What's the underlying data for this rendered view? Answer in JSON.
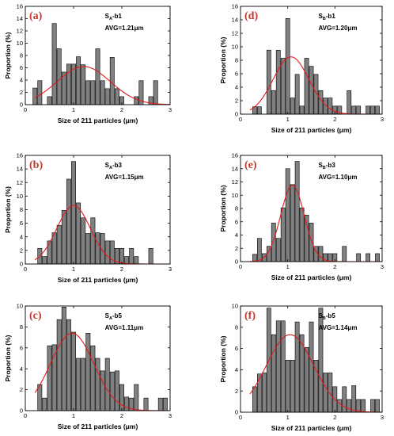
{
  "chart_data": [
    {
      "type": "bar",
      "panel_label": "(a)",
      "sample": {
        "base": "S",
        "sub": "A",
        "suffix": "-b1"
      },
      "avg_label": "AVG=1.21μm",
      "xlabel": "Size of 211 particles (μm)",
      "ylabel": "Proportion (%)",
      "xlim": [
        0,
        3
      ],
      "ylim": [
        0,
        16
      ],
      "xticks": [
        0,
        1,
        2,
        3
      ],
      "yticks": [
        0,
        2,
        4,
        6,
        8,
        10,
        12,
        14,
        16
      ],
      "bin_width": 0.1,
      "bar_color": "#808080",
      "fit_color": "#e31a1c",
      "x": [
        0.2,
        0.3,
        0.4,
        0.5,
        0.6,
        0.7,
        0.8,
        0.9,
        1.0,
        1.1,
        1.2,
        1.3,
        1.4,
        1.5,
        1.6,
        1.7,
        1.8,
        1.9,
        2.0,
        2.1,
        2.2,
        2.3,
        2.4,
        2.5,
        2.6,
        2.7
      ],
      "values": [
        2.7,
        3.9,
        0,
        1.3,
        13.2,
        9.1,
        5.3,
        6.6,
        6.6,
        7.8,
        6.5,
        3.9,
        3.9,
        9.1,
        3.9,
        2.6,
        7.7,
        2.6,
        1.3,
        0,
        0,
        1.3,
        3.9,
        0,
        1.3,
        3.9
      ],
      "fit": {
        "mean": 1.21,
        "sigma": 0.55,
        "peak": 6.2
      }
    },
    {
      "type": "bar",
      "panel_label": "(b)",
      "sample": {
        "base": "S",
        "sub": "A",
        "suffix": "-b3"
      },
      "avg_label": "AVG=1.15μm",
      "xlabel": "Size of 211 particles (μm)",
      "ylabel": "Proportion (%)",
      "xlim": [
        0,
        3
      ],
      "ylim": [
        0,
        16
      ],
      "xticks": [
        0,
        1,
        2,
        3
      ],
      "yticks": [
        0,
        2,
        4,
        6,
        8,
        10,
        12,
        14,
        16
      ],
      "bin_width": 0.1,
      "bar_color": "#808080",
      "fit_color": "#e31a1c",
      "x": [
        0.3,
        0.4,
        0.5,
        0.6,
        0.7,
        0.8,
        0.9,
        1.0,
        1.1,
        1.2,
        1.3,
        1.4,
        1.5,
        1.6,
        1.7,
        1.8,
        1.9,
        2.0,
        2.1,
        2.2,
        2.3,
        2.5,
        2.6
      ],
      "values": [
        2.3,
        1.1,
        3.4,
        4.6,
        5.7,
        7.9,
        12.5,
        15.1,
        9.0,
        6.8,
        4.5,
        6.8,
        4.6,
        4.5,
        3.4,
        3.4,
        2.3,
        2.3,
        1.1,
        2.3,
        1.1,
        0,
        2.3
      ],
      "fit": {
        "mean": 1.0,
        "sigma": 0.35,
        "peak": 8.6
      }
    },
    {
      "type": "bar",
      "panel_label": "(c)",
      "sample": {
        "base": "S",
        "sub": "A",
        "suffix": "-b5"
      },
      "avg_label": "AVG=1.11μm",
      "xlabel": "Size of 211 particles (μm)",
      "ylabel": "Proportion (%)",
      "xlim": [
        0,
        3
      ],
      "ylim": [
        0,
        10
      ],
      "xticks": [
        0,
        1,
        2,
        3
      ],
      "yticks": [
        0,
        2,
        4,
        6,
        8,
        10
      ],
      "bin_width": 0.1,
      "bar_color": "#808080",
      "fit_color": "#e31a1c",
      "x": [
        0.3,
        0.4,
        0.5,
        0.6,
        0.7,
        0.8,
        0.9,
        1.0,
        1.1,
        1.2,
        1.3,
        1.4,
        1.5,
        1.6,
        1.7,
        1.8,
        1.9,
        2.0,
        2.1,
        2.2,
        2.3,
        2.4,
        2.5,
        2.6,
        2.7,
        2.8,
        2.9
      ],
      "values": [
        2.5,
        1.2,
        6.2,
        6.3,
        8.7,
        9.9,
        8.7,
        7.5,
        5.0,
        5.0,
        7.4,
        6.2,
        5.0,
        3.8,
        5.0,
        3.7,
        3.8,
        2.5,
        1.3,
        1.2,
        2.5,
        0,
        1.2,
        0,
        0,
        1.2,
        1.2
      ],
      "fit": {
        "mean": 0.97,
        "sigma": 0.45,
        "peak": 7.4
      }
    },
    {
      "type": "bar",
      "panel_label": "(d)",
      "sample": {
        "base": "S",
        "sub": "B",
        "suffix": "-b1"
      },
      "avg_label": "AVG=1.20μm",
      "xlabel": "Size of 211 particles (μm)",
      "ylabel": "Proportion (%)",
      "xlim": [
        0,
        3
      ],
      "ylim": [
        0,
        16
      ],
      "xticks": [
        0,
        1,
        2,
        3
      ],
      "yticks": [
        0,
        2,
        4,
        6,
        8,
        10,
        12,
        14,
        16
      ],
      "bin_width": 0.1,
      "bar_color": "#808080",
      "fit_color": "#e31a1c",
      "x": [
        0.3,
        0.4,
        0.5,
        0.6,
        0.7,
        0.8,
        0.9,
        1.0,
        1.1,
        1.2,
        1.3,
        1.4,
        1.5,
        1.6,
        1.7,
        1.8,
        1.9,
        2.0,
        2.1,
        2.2,
        2.3,
        2.4,
        2.5,
        2.6,
        2.7,
        2.8,
        2.9
      ],
      "values": [
        1.1,
        1.1,
        0,
        9.5,
        3.5,
        9.5,
        8.3,
        14.2,
        2.4,
        5.9,
        1.2,
        8.3,
        7.1,
        5.9,
        3.5,
        2.4,
        2.4,
        1.2,
        1.2,
        0,
        3.5,
        1.2,
        1.2,
        0,
        1.2,
        1.2,
        1.2
      ],
      "fit": {
        "mean": 1.07,
        "sigma": 0.38,
        "peak": 8.5
      }
    },
    {
      "type": "bar",
      "panel_label": "(e)",
      "sample": {
        "base": "S",
        "sub": "B",
        "suffix": "-b3"
      },
      "avg_label": "AVG=1.10μm",
      "xlabel": "Size of 211 particles (μm)",
      "ylabel": "Proportion (%)",
      "xlim": [
        0,
        3
      ],
      "ylim": [
        0,
        16
      ],
      "xticks": [
        0,
        1,
        2,
        3
      ],
      "yticks": [
        0,
        2,
        4,
        6,
        8,
        10,
        12,
        14,
        16
      ],
      "bin_width": 0.1,
      "bar_color": "#808080",
      "fit_color": "#e31a1c",
      "x": [
        0.3,
        0.4,
        0.5,
        0.6,
        0.7,
        0.8,
        0.9,
        1.0,
        1.1,
        1.2,
        1.3,
        1.4,
        1.5,
        1.6,
        1.7,
        1.8,
        1.9,
        2.0,
        2.1,
        2.2,
        2.5,
        2.7,
        2.9
      ],
      "values": [
        1.1,
        3.5,
        1.2,
        2.3,
        5.8,
        3.5,
        8.1,
        14.0,
        11.6,
        15.1,
        8.1,
        7.0,
        5.8,
        2.3,
        2.3,
        1.2,
        1.2,
        1.2,
        0,
        2.3,
        1.2,
        1.2,
        1.2
      ],
      "fit": {
        "mean": 1.1,
        "sigma": 0.25,
        "peak": 11.5
      }
    },
    {
      "type": "bar",
      "panel_label": "(f)",
      "sample": {
        "base": "S",
        "sub": "B",
        "suffix": "-b5"
      },
      "avg_label": "AVG=1.14μm",
      "xlabel": "Size of 211 particles (μm)",
      "ylabel": "Proportion (%)",
      "xlim": [
        0,
        3
      ],
      "ylim": [
        0,
        10
      ],
      "xticks": [
        0,
        1,
        2,
        3
      ],
      "yticks": [
        0,
        2,
        4,
        6,
        8,
        10
      ],
      "bin_width": 0.1,
      "bar_color": "#808080",
      "fit_color": "#e31a1c",
      "x": [
        0.3,
        0.4,
        0.5,
        0.6,
        0.7,
        0.8,
        0.9,
        1.0,
        1.1,
        1.2,
        1.3,
        1.4,
        1.5,
        1.6,
        1.7,
        1.8,
        1.9,
        2.0,
        2.1,
        2.2,
        2.3,
        2.4,
        2.5,
        2.6,
        2.7,
        2.8,
        2.9
      ],
      "values": [
        2.4,
        3.6,
        3.7,
        9.8,
        7.3,
        8.6,
        8.6,
        4.9,
        4.9,
        8.5,
        7.3,
        6.1,
        8.5,
        4.9,
        9.8,
        3.7,
        3.7,
        2.4,
        1.2,
        2.4,
        1.2,
        2.5,
        1.2,
        1.2,
        0,
        1.2,
        1.2
      ],
      "fit": {
        "mean": 1.05,
        "sigma": 0.5,
        "peak": 7.3
      }
    }
  ]
}
